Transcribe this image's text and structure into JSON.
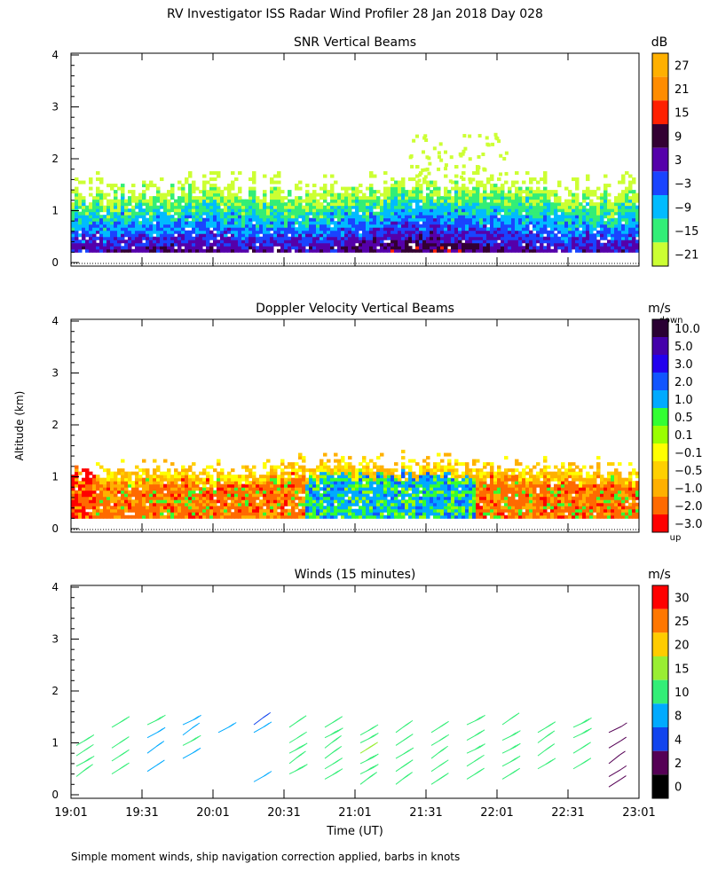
{
  "title": "RV Investigator ISS Radar Wind Profiler  28 Jan 2018 Day 028",
  "ylabel": "Altitude (km)",
  "xlabel": "Time (UT)",
  "footnote": "Simple moment winds, ship navigation correction applied, barbs in knots",
  "time_ticks": [
    "19:01",
    "19:31",
    "20:01",
    "20:31",
    "21:01",
    "21:31",
    "22:01",
    "22:31",
    "23:01"
  ],
  "altitude_ticks": [
    "0",
    "1",
    "2",
    "3",
    "4"
  ],
  "colors": {
    "red": "#ff0000",
    "orange_red": "#ff6a00",
    "orange": "#ff8c00",
    "amber": "#ffb000",
    "gold": "#ffd000",
    "yellow": "#ffff00",
    "yellow_green": "#ccff33",
    "lime": "#9aff00",
    "green": "#33ff33",
    "spring_green": "#33ee77",
    "cyan": "#00ccff",
    "sky_blue": "#00aaff",
    "blue": "#1155ff",
    "dark_blue": "#2200ee",
    "indigo": "#4400aa",
    "purple": "#5500aa",
    "dark_purple": "#550055",
    "very_dark_purple": "#2a0033",
    "black": "#000000"
  },
  "chart_data": [
    {
      "type": "heatmap",
      "title": "SNR Vertical Beams",
      "colorbar_unit": "dB",
      "colorbar_labels": [
        "27",
        "21",
        "15",
        "9",
        "3",
        "−3",
        "−9",
        "−15",
        "−21"
      ],
      "colorbar_colors": [
        "#ffb000",
        "#ff8c00",
        "#ff2000",
        "#330033",
        "#5500aa",
        "#1a44ff",
        "#00bbff",
        "#33ee77",
        "#ccff33"
      ],
      "x_range": [
        "19:01",
        "23:01"
      ],
      "ylim": [
        0,
        4
      ],
      "echo_top_km_typical": 1.5
    },
    {
      "type": "heatmap",
      "title": "Doppler Velocity Vertical Beams",
      "colorbar_unit": "m/s",
      "colorbar_top_note": "down",
      "colorbar_bottom_note": "up",
      "colorbar_labels": [
        "10.0",
        "5.0",
        "3.0",
        "2.0",
        "1.0",
        "0.5",
        "0.1",
        "−0.1",
        "−0.5",
        "−1.0",
        "−2.0",
        "−3.0"
      ],
      "colorbar_colors": [
        "#2a0033",
        "#4400aa",
        "#2200ee",
        "#1155ff",
        "#00aaff",
        "#33ff33",
        "#9aff00",
        "#ffff00",
        "#ffd000",
        "#ffb000",
        "#ff6a00",
        "#ff0000"
      ],
      "x_range": [
        "19:01",
        "23:01"
      ],
      "ylim": [
        0,
        4
      ],
      "echo_top_km_typical": 1.2
    },
    {
      "type": "scatter",
      "title": "Winds (15 minutes)",
      "colorbar_unit": "m/s",
      "colorbar_labels": [
        "30",
        "25",
        "20",
        "15",
        "10",
        "8",
        "4",
        "2",
        "0"
      ],
      "colorbar_colors": [
        "#ff0000",
        "#ff7700",
        "#ffcc00",
        "#99ee33",
        "#33ee77",
        "#00aaff",
        "#1144ee",
        "#550055",
        "#000000"
      ],
      "x_range": [
        "19:01",
        "23:01"
      ],
      "ylim": [
        0,
        4
      ],
      "profiles": [
        {
          "time": "19:01",
          "heights_km": [
            0.35,
            0.55,
            0.75,
            0.95
          ],
          "speed_ms": 12
        },
        {
          "time": "19:16",
          "heights_km": [
            0.4,
            0.65,
            0.9,
            1.3
          ],
          "speed_ms": 12
        },
        {
          "time": "19:31",
          "heights_km": [
            0.45,
            0.8,
            1.1,
            1.35
          ],
          "speed_ms": 9
        },
        {
          "time": "19:46",
          "heights_km": [
            0.7,
            0.95,
            1.15,
            1.35
          ],
          "speed_ms": 10
        },
        {
          "time": "20:01",
          "heights_km": [
            1.2
          ],
          "speed_ms": 8
        },
        {
          "time": "20:16",
          "heights_km": [
            0.25,
            1.2,
            1.35
          ],
          "speed_ms": 8
        },
        {
          "time": "20:31",
          "heights_km": [
            0.4,
            0.6,
            0.8,
            1.0,
            1.3
          ],
          "speed_ms": 13
        },
        {
          "time": "20:46",
          "heights_km": [
            0.3,
            0.5,
            0.7,
            0.9,
            1.1,
            1.3
          ],
          "speed_ms": 13
        },
        {
          "time": "21:01",
          "heights_km": [
            0.2,
            0.4,
            0.6,
            0.8,
            1.0,
            1.15
          ],
          "speed_ms": 14
        },
        {
          "time": "21:16",
          "heights_km": [
            0.2,
            0.45,
            0.7,
            0.95,
            1.2
          ],
          "speed_ms": 14
        },
        {
          "time": "21:31",
          "heights_km": [
            0.2,
            0.45,
            0.7,
            0.95,
            1.2
          ],
          "speed_ms": 14
        },
        {
          "time": "21:46",
          "heights_km": [
            0.3,
            0.55,
            0.8,
            1.05,
            1.35
          ],
          "speed_ms": 13
        },
        {
          "time": "22:01",
          "heights_km": [
            0.3,
            0.55,
            0.8,
            1.05,
            1.35
          ],
          "speed_ms": 12
        },
        {
          "time": "22:16",
          "heights_km": [
            0.5,
            0.75,
            1.0,
            1.2
          ],
          "speed_ms": 12
        },
        {
          "time": "22:31",
          "heights_km": [
            0.5,
            0.8,
            1.1,
            1.3
          ],
          "speed_ms": 12
        },
        {
          "time": "22:46",
          "heights_km": [
            0.15,
            0.35,
            0.6,
            0.9,
            1.2
          ],
          "speed_ms": 4
        }
      ]
    }
  ]
}
